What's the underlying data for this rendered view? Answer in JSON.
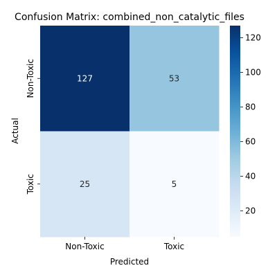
{
  "chart_data": {
    "type": "heatmap",
    "title": "Confusion Matrix: combined_non_catalytic_files",
    "xlabel": "Predicted",
    "ylabel": "Actual",
    "x_categories": [
      "Non-Toxic",
      "Toxic"
    ],
    "y_categories": [
      "Non-Toxic",
      "Toxic"
    ],
    "values": [
      [
        127,
        53
      ],
      [
        25,
        5
      ]
    ],
    "colormap": "Blues",
    "colorbar": {
      "range": [
        5,
        127
      ],
      "ticks": [
        20,
        40,
        60,
        80,
        100,
        120
      ]
    },
    "grid": false,
    "legend": "colorbar-right"
  }
}
